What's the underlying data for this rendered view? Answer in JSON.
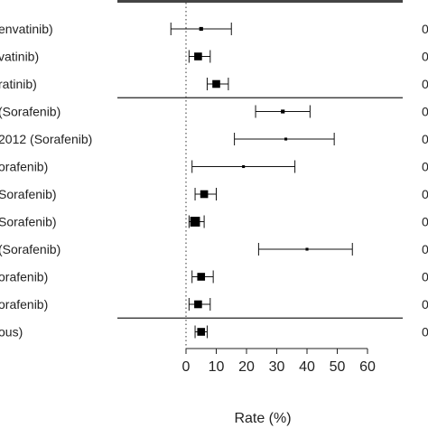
{
  "chart_data": {
    "type": "forest",
    "xlabel": "Rate (%)",
    "xlim": [
      0,
      60
    ],
    "xticks": [
      0,
      10,
      20,
      30,
      40,
      50,
      60
    ],
    "reference_line": 0,
    "rows": [
      {
        "label": "envatinib)",
        "estimate": 5,
        "lower": -5,
        "upper": 15,
        "weight": 1,
        "right_text": "0"
      },
      {
        "label": "vatinib)",
        "estimate": 4,
        "lower": 1,
        "upper": 8,
        "weight": 3,
        "right_text": "0"
      },
      {
        "label": "ratinib)",
        "estimate": 10,
        "lower": 7,
        "upper": 14,
        "weight": 3,
        "right_text": "0"
      },
      {
        "label": "(Sorafenib)",
        "estimate": 32,
        "lower": 23,
        "upper": 41,
        "weight": 1,
        "right_text": "0"
      },
      {
        "label": "2012 (Sorafenib)",
        "estimate": 33,
        "lower": 16,
        "upper": 49,
        "weight": 0.5,
        "right_text": "0"
      },
      {
        "label": "orafenib)",
        "estimate": 19,
        "lower": 2,
        "upper": 36,
        "weight": 0.5,
        "right_text": "0"
      },
      {
        "label": "Sorafenib)",
        "estimate": 6,
        "lower": 3,
        "upper": 10,
        "weight": 3,
        "right_text": "0"
      },
      {
        "label": "Sorafenib)",
        "estimate": 3,
        "lower": 1,
        "upper": 6,
        "weight": 4,
        "right_text": "0"
      },
      {
        "label": "(Sorafenib)",
        "estimate": 40,
        "lower": 24,
        "upper": 55,
        "weight": 0.5,
        "right_text": "0"
      },
      {
        "label": "orafenib)",
        "estimate": 5,
        "lower": 2,
        "upper": 9,
        "weight": 3,
        "right_text": "0"
      },
      {
        "label": "orafenib)",
        "estimate": 4,
        "lower": 1,
        "upper": 8,
        "weight": 3,
        "right_text": "0"
      },
      {
        "label": "ous)",
        "estimate": 5,
        "lower": 3,
        "upper": 7,
        "weight": 3,
        "right_text": "0"
      }
    ],
    "separators_after_rows": [
      3,
      11
    ]
  }
}
